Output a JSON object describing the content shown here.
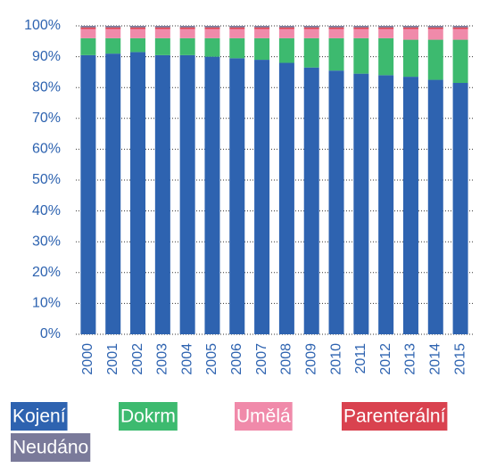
{
  "chart_data": {
    "type": "stacked_bar",
    "categories": [
      "2000",
      "2001",
      "2002",
      "2003",
      "2004",
      "2005",
      "2006",
      "2007",
      "2008",
      "2009",
      "2010",
      "2011",
      "2012",
      "2013",
      "2014",
      "2015"
    ],
    "series": [
      {
        "name": "Kojení",
        "color": "#2e63b0",
        "values": [
          90.5,
          91,
          91.5,
          90.5,
          90.5,
          90,
          89.5,
          89,
          88,
          86.5,
          85.5,
          84.5,
          84,
          83.5,
          82.5,
          81.5
        ]
      },
      {
        "name": "Dokrm",
        "color": "#3dba6f",
        "values": [
          5.5,
          5,
          4.5,
          5.5,
          5.5,
          6,
          6.5,
          7,
          8,
          9.5,
          10.5,
          11.5,
          12,
          12,
          13,
          14
        ]
      },
      {
        "name": "Umělá",
        "color": "#f08aaa",
        "values": [
          3,
          3,
          3,
          3,
          3,
          3,
          3,
          3,
          3,
          3,
          3,
          3,
          3,
          3.5,
          3.5,
          3.5
        ]
      },
      {
        "name": "Parenterální",
        "color": "#d9424f",
        "values": [
          0.5,
          0.5,
          0.5,
          0.5,
          0.5,
          0.5,
          0.5,
          0.5,
          0.5,
          0.5,
          0.5,
          0.5,
          0.5,
          0.5,
          0.5,
          0.5
        ]
      },
      {
        "name": "Neudáno",
        "color": "#7a7a9a",
        "values": [
          0.5,
          0.5,
          0.5,
          0.5,
          0.5,
          0.5,
          0.5,
          0.5,
          0.5,
          0.5,
          0.5,
          0.5,
          0.5,
          0.5,
          0.5,
          0.5
        ]
      }
    ],
    "ylim": [
      0,
      100
    ],
    "yticks": [
      {
        "value": 0,
        "label": "0%"
      },
      {
        "value": 10,
        "label": "10%"
      },
      {
        "value": 20,
        "label": "20%"
      },
      {
        "value": 30,
        "label": "30%"
      },
      {
        "value": 40,
        "label": "40%"
      },
      {
        "value": 50,
        "label": "50%"
      },
      {
        "value": 60,
        "label": "60%"
      },
      {
        "value": 70,
        "label": "70%"
      },
      {
        "value": 80,
        "label": "80%"
      },
      {
        "value": 90,
        "label": "90%"
      },
      {
        "value": 100,
        "label": "100%"
      }
    ],
    "grid": true
  }
}
